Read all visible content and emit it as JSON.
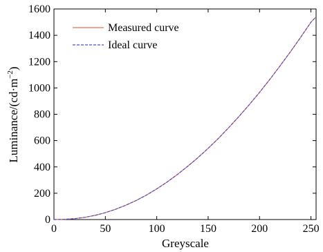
{
  "chart_data": {
    "type": "line",
    "title": "",
    "xlabel": "Greyscale",
    "ylabel_main": "Luminance/(cd·m",
    "ylabel_sup": "−2",
    "ylabel_close": ")",
    "xlim": [
      0,
      255
    ],
    "ylim": [
      0,
      1600
    ],
    "xticks": [
      0,
      50,
      100,
      150,
      200,
      250
    ],
    "yticks": [
      0,
      200,
      400,
      600,
      800,
      1000,
      1200,
      1400,
      1600
    ],
    "grid": false,
    "legend_position": "top-left",
    "x": [
      0,
      10,
      20,
      30,
      40,
      50,
      60,
      70,
      80,
      90,
      100,
      110,
      120,
      130,
      140,
      150,
      160,
      170,
      180,
      190,
      200,
      210,
      220,
      230,
      240,
      250,
      255
    ],
    "series": [
      {
        "name": "Measured curve",
        "color": "#e8704a",
        "style": "solid",
        "values": [
          0,
          2,
          7,
          17,
          32,
          52,
          78,
          109,
          145,
          186,
          233,
          285,
          342,
          404,
          470,
          541,
          617,
          698,
          783,
          873,
          967,
          1065,
          1168,
          1274,
          1385,
          1500,
          1540
        ]
      },
      {
        "name": "Ideal curve",
        "color": "#4a4fd0",
        "style": "dashed",
        "values": [
          0,
          2,
          7,
          17,
          32,
          52,
          78,
          109,
          145,
          186,
          233,
          285,
          342,
          404,
          470,
          541,
          617,
          698,
          783,
          873,
          967,
          1065,
          1168,
          1274,
          1385,
          1500,
          1540
        ]
      }
    ]
  }
}
